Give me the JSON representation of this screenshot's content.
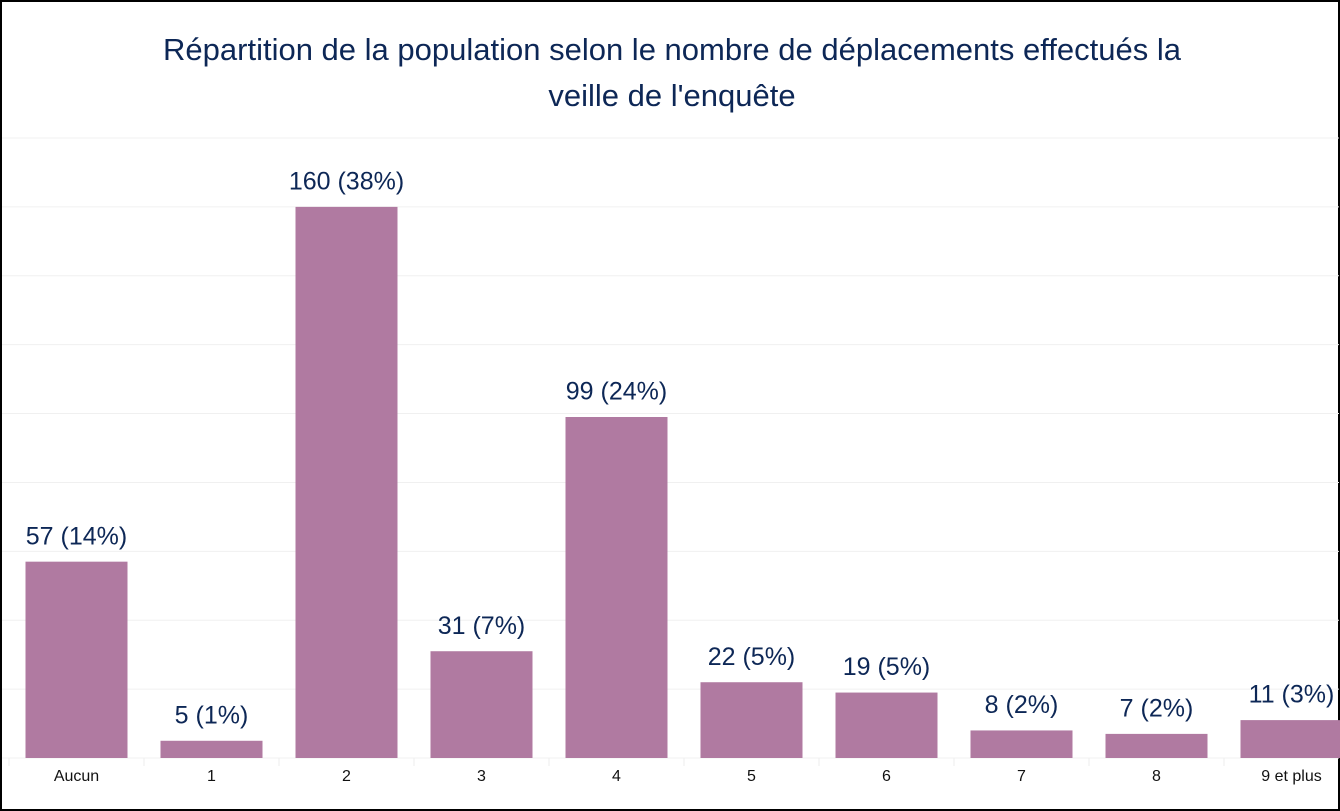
{
  "chart_data": {
    "type": "bar",
    "title": [
      "Répartition de la population selon le nombre de déplacements effectués la",
      "veille de l'enquête"
    ],
    "categories": [
      "Aucun",
      "1",
      "2",
      "3",
      "4",
      "5",
      "6",
      "7",
      "8",
      "9 et plus"
    ],
    "values": [
      57,
      5,
      160,
      31,
      99,
      22,
      19,
      8,
      7,
      11
    ],
    "value_labels": [
      "57 (14%)",
      "5 (1%)",
      "160 (38%)",
      "31 (7%)",
      "99 (24%)",
      "22 (5%)",
      "19 (5%)",
      "8 (2%)",
      "7 (2%)",
      "11 (3%)"
    ],
    "color": "#b07aa1",
    "ylim": [
      0,
      180
    ],
    "yticks": [
      0,
      20,
      40,
      60,
      80,
      100,
      120,
      140,
      160,
      180
    ],
    "grid": true
  }
}
